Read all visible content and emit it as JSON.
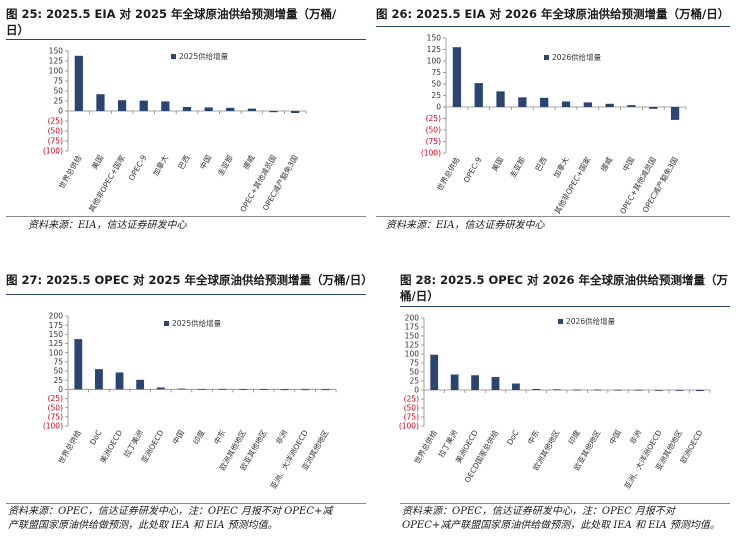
{
  "panels": [
    {
      "title": "图 25:  2025.5 EIA 对 2025 年全球原油供给预测增量（万桶/日）",
      "title_lines": [
        "图 25:  2025.5 EIA 对 2025 年全球原油供给预测增量（万桶/",
        "日）"
      ],
      "source": "资料来源：EIA，信达证券研发中心",
      "source_lines": [
        "资料来源：EIA，信达证券研发中心"
      ]
    },
    {
      "title": "图 26:  2025.5 EIA 对 2026 年全球原油供给预测增量（万桶/日）",
      "title_lines": [
        "图 26:  2025.5 EIA 对 2026 年全球原油供给预测增量（万桶/日）"
      ],
      "source": "资料来源：EIA，信达证券研发中心",
      "source_lines": [
        "资料来源：EIA，信达证券研发中心"
      ]
    },
    {
      "title": "图 27:  2025.5 OPEC 对 2025 年全球原油供给预测增量（万桶/日）",
      "title_lines": [
        "图 27:  2025.5 OPEC 对 2025 年全球原油供给预测增量（万桶/日）"
      ],
      "source": "资料来源：OPEC，信达证券研发中心，注：OPEC 月报不对 OPEC+减产联盟国家原油供给做预测，此处取 IEA 和 EIA 预测均值。",
      "source_lines": [
        "资料来源：OPEC，信达证券研发中心，注：OPEC 月报不对 OPEC+减",
        "产联盟国家原油供给做预测，此处取 IEA 和 EIA 预测均值。"
      ]
    },
    {
      "title": "图 28:  2025.5 OPEC 对 2026 年全球原油供给预测增量（万桶/日）",
      "title_lines": [
        "图 28:  2025.5 OPEC 对 2026 年全球原油供给预测增量（万",
        "桶/日）"
      ],
      "source": "资料来源：OPEC，信达证券研发中心，注：OPEC 月报不对 OPEC+减产联盟国家原油供给做预测，此处取 IEA 和 EIA 预测均值。",
      "source_lines": [
        "资料来源：OPEC，信达证券研发中心，注：OPEC 月报不对",
        "OPEC+减产联盟国家原油供给做预测，此处取 IEA 和 EIA 预测均值。"
      ]
    }
  ],
  "chart_data": [
    {
      "type": "bar",
      "legend": "2025供给增量",
      "categories": [
        "世界总供给",
        "美国",
        "其他非OPEC+国家",
        "OPEC-9",
        "加拿大",
        "巴西",
        "中国",
        "圭亚那",
        "挪威",
        "OPEC+其他减员国",
        "OPEC减产豁免3国"
      ],
      "values": [
        138,
        42,
        27,
        26,
        24,
        10,
        9,
        8,
        6,
        -3,
        -5
      ],
      "yticks": [
        "150",
        "125",
        "100",
        "75",
        "50",
        "25",
        "0",
        "(25)",
        "(50)",
        "(75)",
        "(100)"
      ],
      "ylim": [
        -100,
        150
      ],
      "color": "#2b4472"
    },
    {
      "type": "bar",
      "legend": "2026供给增量",
      "categories": [
        "世界总供给",
        "OPEC-9",
        "美国",
        "圭亚那",
        "巴西",
        "加拿大",
        "其他非OPEC+国家",
        "挪威",
        "中国",
        "OPEC+其他减员国",
        "OPEC减产豁免3国"
      ],
      "values": [
        130,
        52,
        34,
        21,
        20,
        12,
        10,
        7,
        4,
        -4,
        -28
      ],
      "yticks": [
        "150",
        "125",
        "100",
        "75",
        "50",
        "25",
        "0",
        "(25)",
        "(50)",
        "(75)",
        "(100)"
      ],
      "ylim": [
        -100,
        150
      ],
      "color": "#2b4472"
    },
    {
      "type": "bar",
      "legend": "2025供给增量",
      "categories": [
        "世界总供给",
        "DoC",
        "美洲OECD",
        "拉丁美洲",
        "亚洲OECD",
        "中国",
        "印度",
        "中东",
        "欧洲其他地区",
        "欧亚其他地区",
        "非洲",
        "亚洲、大洋洲OECD",
        "亚洲其他地区"
      ],
      "values": [
        137,
        55,
        46,
        26,
        5,
        2,
        1,
        1,
        0.5,
        0.5,
        -0.5,
        -1,
        -1.5
      ],
      "yticks": [
        "200",
        "175",
        "150",
        "125",
        "100",
        "75",
        "50",
        "25",
        "0",
        "(25)",
        "(50)",
        "(75)",
        "(100)"
      ],
      "ylim": [
        -100,
        200
      ],
      "color": "#2b4472"
    },
    {
      "type": "bar",
      "legend": "2026供给增量",
      "categories": [
        "世界总供给",
        "拉丁美洲",
        "美洲OECD",
        "OECD国家总供给",
        "DoC",
        "中东",
        "欧洲其他地区",
        "印度",
        "欧亚其他地区",
        "中国",
        "非洲",
        "亚洲、大洋洲OECD",
        "亚洲其他地区",
        "欧洲OECD"
      ],
      "values": [
        98,
        43,
        41,
        36,
        18,
        3,
        2,
        1,
        1,
        0.5,
        0.5,
        -0.5,
        -2,
        -3
      ],
      "yticks": [
        "200",
        "175",
        "150",
        "125",
        "100",
        "75",
        "50",
        "25",
        "0",
        "(25)",
        "(50)",
        "(75)",
        "(100)"
      ],
      "ylim": [
        -100,
        200
      ],
      "color": "#2b4472"
    }
  ]
}
